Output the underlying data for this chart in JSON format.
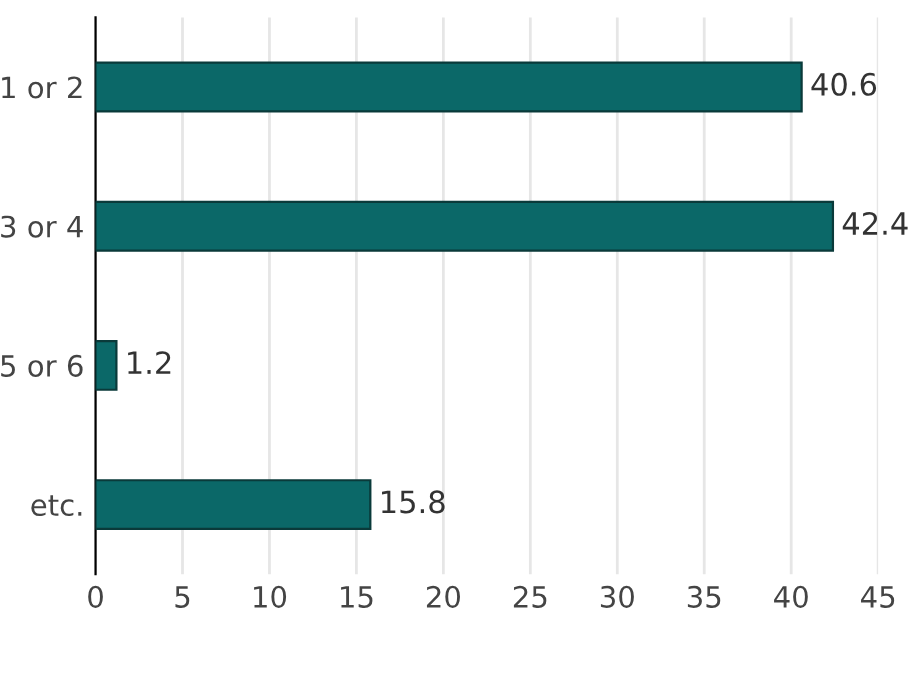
{
  "chart_data": {
    "type": "bar",
    "orientation": "horizontal",
    "categories": [
      "1 or 2",
      "3 or 4",
      "5 or 6",
      "etc."
    ],
    "values": [
      40.6,
      42.4,
      1.2,
      15.8
    ],
    "color": "#0b6868",
    "xlim": [
      0,
      45
    ],
    "xticks": [
      0,
      5,
      10,
      15,
      20,
      25,
      30,
      35,
      40,
      45
    ],
    "grid": "x",
    "data_labels": true
  }
}
